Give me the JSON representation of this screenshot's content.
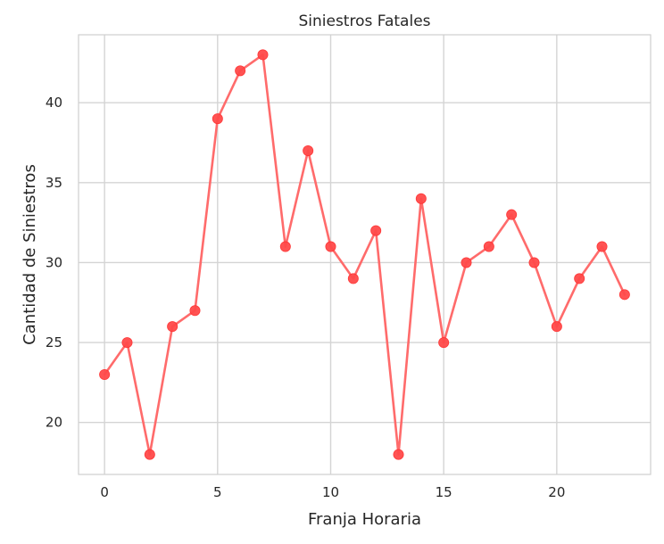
{
  "chart_data": {
    "type": "line",
    "title": "Siniestros Fatales",
    "xlabel": "Franja Horaria",
    "ylabel": "Cantidad de Siniestros",
    "x": [
      0,
      1,
      2,
      3,
      4,
      5,
      6,
      7,
      8,
      9,
      10,
      11,
      12,
      13,
      14,
      15,
      16,
      17,
      18,
      19,
      20,
      21,
      22,
      23
    ],
    "series": [
      {
        "values": [
          23,
          25,
          18,
          26,
          27,
          39,
          42,
          43,
          31,
          37,
          31,
          29,
          32,
          18,
          34,
          25,
          30,
          31,
          33,
          30,
          26,
          29,
          31,
          28
        ]
      }
    ],
    "xlim": [
      -1.15,
      24.15
    ],
    "ylim": [
      16.75,
      44.25
    ],
    "xticks": [
      0,
      5,
      10,
      15,
      20
    ],
    "yticks": [
      20,
      25,
      30,
      35,
      40
    ],
    "grid": true,
    "legend": "none",
    "colors": {
      "line": "#ff6b6b",
      "marker": "#ff4a4a",
      "grid": "#d4d4d4",
      "axes": "#cfcfcf",
      "text": "#262626",
      "background": "#ffffff"
    }
  }
}
